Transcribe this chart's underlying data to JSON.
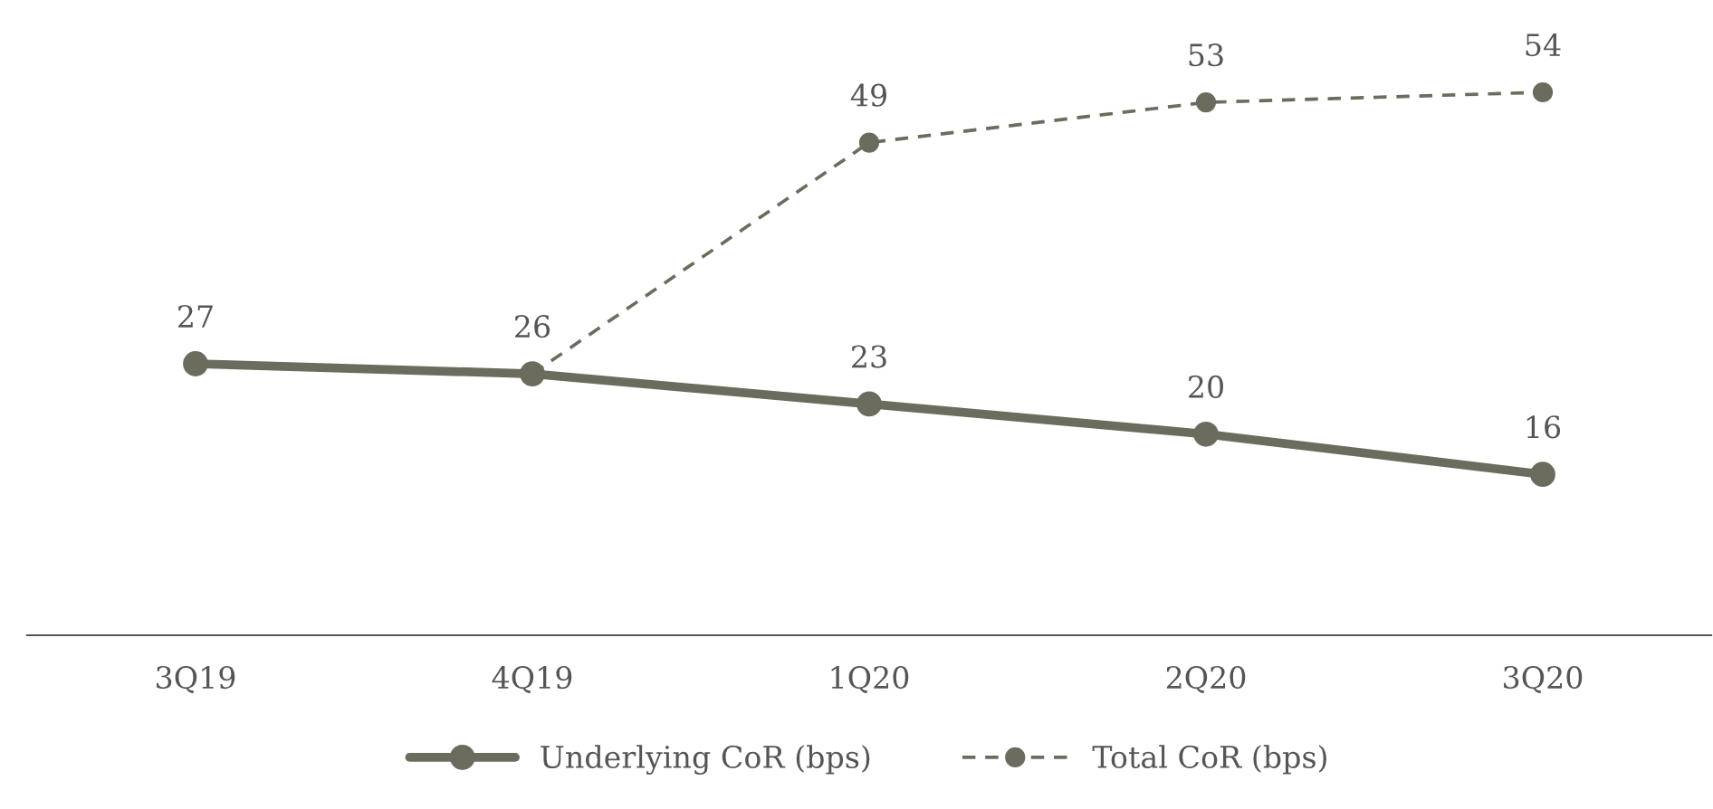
{
  "chart_data": {
    "type": "line",
    "categories": [
      "3Q19",
      "4Q19",
      "1Q20",
      "2Q20",
      "3Q20"
    ],
    "series": [
      {
        "name": "Underlying CoR (bps)",
        "color": "#6b6b5e",
        "values": [
          27,
          26,
          23,
          20,
          16
        ],
        "marker": "circle",
        "line_style": "solid",
        "value_labels": [
          "27",
          "26",
          "23",
          "20",
          "16"
        ]
      },
      {
        "name": "Total CoR (bps)",
        "color": "#6b6b5e",
        "values": [
          null,
          26,
          49,
          53,
          54
        ],
        "marker": "circle",
        "line_style": "dashed",
        "value_labels": [
          null,
          null,
          "49",
          "53",
          "54"
        ]
      }
    ],
    "tick_labels": "x",
    "grid": false,
    "legend": "bottom"
  }
}
